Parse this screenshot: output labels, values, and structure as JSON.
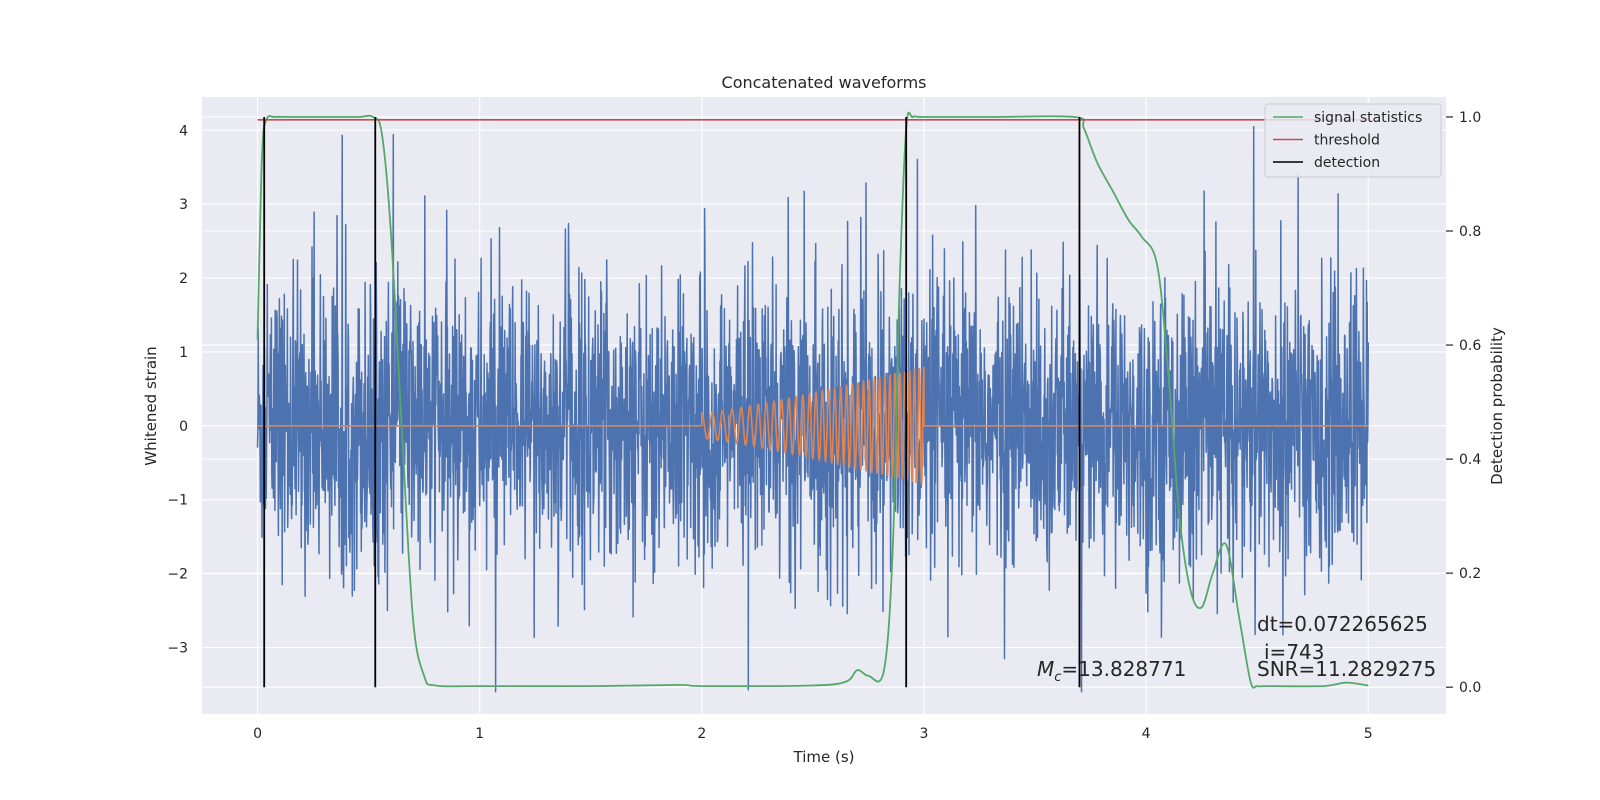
{
  "chart_data": {
    "type": "line",
    "title": "Concatenated waveforms",
    "xlabel": "Time (s)",
    "ylabel": "Whitened strain",
    "ylabel_right": "Detection probability",
    "xlim": [
      -0.25,
      5.35
    ],
    "ylim": [
      -3.9,
      4.45
    ],
    "ylim_right": [
      -0.047,
      1.035
    ],
    "x_ticks": [
      0,
      1,
      2,
      3,
      4,
      5
    ],
    "y_ticks": [
      -3,
      -2,
      -1,
      0,
      1,
      2,
      3,
      4
    ],
    "y_ticks_right": [
      0.0,
      0.2,
      0.4,
      0.6,
      0.8,
      1.0
    ],
    "x_tick_labels": [
      "0",
      "1",
      "2",
      "3",
      "4",
      "5"
    ],
    "y_tick_labels": [
      "−3",
      "−2",
      "−1",
      "0",
      "1",
      "2",
      "3",
      "4"
    ],
    "y_tick_labels_right": [
      "0.0",
      "0.2",
      "0.4",
      "0.6",
      "0.8",
      "1.0"
    ],
    "grid": true,
    "legend_position": "top-right",
    "colors": {
      "background": "#eaeaf2",
      "grid": "#ffffff",
      "strain": "#4c72b0",
      "template": "#dd8452",
      "signal_statistics": "#55a868",
      "threshold": "#c44e52",
      "detection": "#000000"
    },
    "legend": [
      {
        "label": "signal statistics",
        "color": "#55a868"
      },
      {
        "label": "threshold",
        "color": "#c44e52"
      },
      {
        "label": "detection",
        "color": "#000000"
      }
    ],
    "whitened_strain": {
      "x_range": [
        0,
        5
      ],
      "approx_range": [
        -3.6,
        4.05
      ],
      "noise_note": "dense noise, sampled"
    },
    "template_waveform": {
      "x_range": [
        2.0,
        3.0
      ],
      "amplitude_start": 0.17,
      "amplitude_end": 0.8
    },
    "signal_statistics": {
      "x": [
        0.0,
        0.02,
        0.04,
        0.08,
        0.15,
        0.3,
        0.45,
        0.52,
        0.56,
        0.6,
        0.65,
        0.7,
        0.75,
        0.8,
        1.0,
        1.5,
        1.9,
        2.0,
        2.5,
        2.65,
        2.7,
        2.75,
        2.82,
        2.86,
        2.89,
        2.92,
        2.95,
        3.0,
        3.3,
        3.68,
        3.72,
        3.78,
        3.85,
        3.92,
        3.98,
        4.05,
        4.1,
        4.15,
        4.2,
        4.25,
        4.3,
        4.36,
        4.42,
        4.47,
        4.5,
        4.55,
        4.8,
        4.9,
        5.0
      ],
      "y": [
        0.61,
        0.93,
        0.995,
        1.0,
        1.0,
        1.0,
        1.0,
        1.0,
        0.97,
        0.8,
        0.45,
        0.12,
        0.02,
        0.003,
        0.002,
        0.002,
        0.004,
        0.002,
        0.003,
        0.01,
        0.03,
        0.02,
        0.03,
        0.25,
        0.7,
        0.98,
        1.0,
        1.0,
        1.0,
        1.0,
        0.98,
        0.92,
        0.87,
        0.82,
        0.79,
        0.74,
        0.55,
        0.3,
        0.17,
        0.14,
        0.2,
        0.25,
        0.12,
        0.01,
        0.002,
        0.002,
        0.002,
        0.008,
        0.003
      ]
    },
    "threshold": {
      "x": [
        0,
        5
      ],
      "y": [
        0.995,
        0.995
      ]
    },
    "detections": [
      0.03,
      0.53,
      2.92,
      3.7
    ],
    "annotations": {
      "mc_symbol": "M",
      "mc_sub": "c",
      "mc_value": "=13.828771",
      "dt": "dt=0.072265625",
      "i": "i=743",
      "snr": "SNR=11.2829275"
    }
  }
}
